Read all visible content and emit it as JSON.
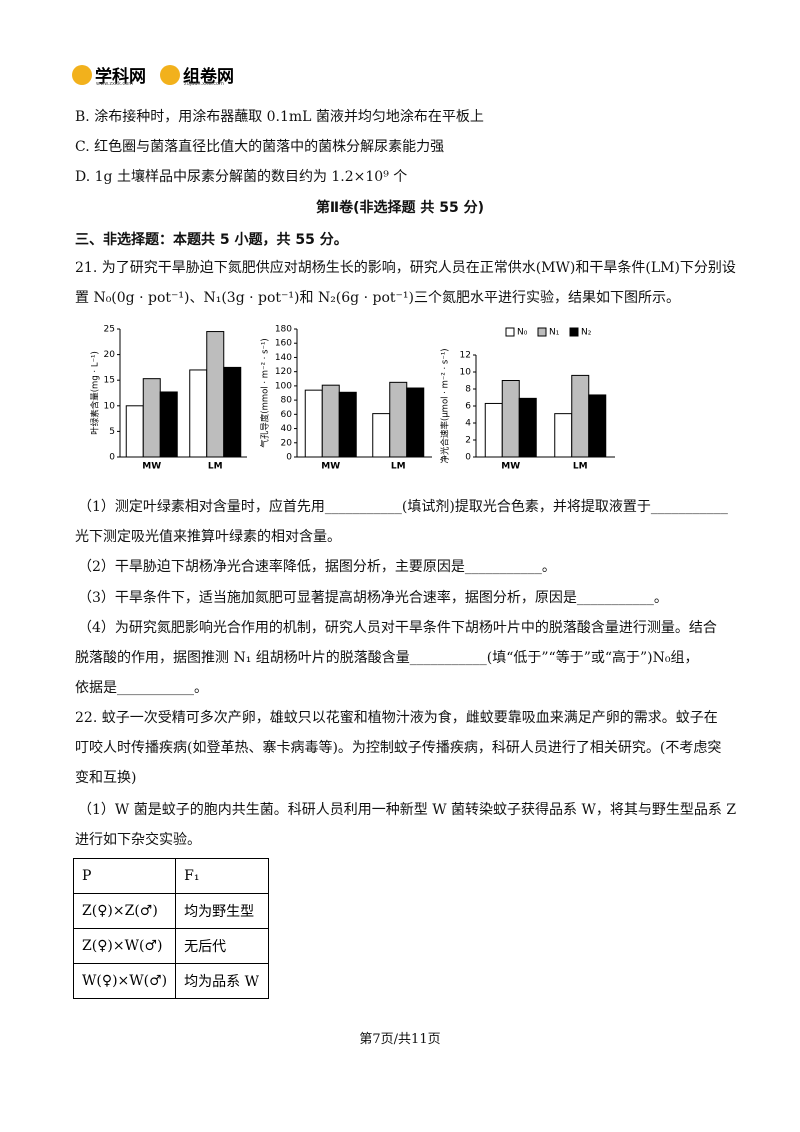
{
  "header": {
    "logo_1": "学科网",
    "logo_1_url": "www.zxxk.com",
    "logo_2": "组卷网",
    "logo_2_url": "zujuan.xkw.com"
  },
  "options": [
    "B. 涂布接种时，用涂布器蘸取 0.1mL 菌液并均匀地涂布在平板上",
    "C. 红色圈与菌落直径比值大的菌落中的菌株分解尿素能力强",
    "D. 1g 土壤样品中尿素分解菌的数目约为 1.2×10⁹ 个"
  ],
  "section_title": "第Ⅱ卷(非选择题  共 55 分)",
  "part_heading": "三、非选择题：本题共 5 小题，共 55 分。",
  "q21": {
    "stem": [
      "21. 为了研究干旱胁迫下氮肥供应对胡杨生长的影响，研究人员在正常供水(MW)和干旱条件(LM)下分别设",
      "置 N₀(0g · pot⁻¹)、N₁(3g · pot⁻¹)和 N₂(6g · pot⁻¹)三个氮肥水平进行实验，结果如下图所示。"
    ],
    "questions": [
      "（1）测定叶绿素相对含量时，应首先用___________(填试剂)提取光合色素，并将提取液置于___________",
      "光下测定吸光值来推算叶绿素的相对含量。",
      "（2）干旱胁迫下胡杨净光合速率降低，据图分析，主要原因是___________。",
      "（3）干旱条件下，适当施加氮肥可显著提高胡杨净光合速率，据图分析，原因是___________。",
      "（4）为研究氮肥影响光合作用的机制，研究人员对干旱条件下胡杨叶片中的脱落酸含量进行测量。结合",
      "脱落酸的作用，据图推测 N₁ 组胡杨叶片的脱落酸含量___________(填“低于”“等于”或“高于”)N₀组，",
      "依据是___________。"
    ]
  },
  "chart_data": [
    {
      "type": "bar",
      "y_label": "叶绿素含量(mg · L⁻¹)",
      "categories": [
        "MW",
        "LM"
      ],
      "series": [
        {
          "color": "#ffffff",
          "values": [
            10,
            17
          ]
        },
        {
          "color": "#bdbdbd",
          "values": [
            15.3,
            24.5
          ]
        },
        {
          "color": "#000000",
          "values": [
            12.7,
            17.5
          ]
        }
      ],
      "ylim": [
        0,
        25
      ],
      "yticks": [
        0,
        5,
        10,
        15,
        20,
        25
      ]
    },
    {
      "type": "bar",
      "y_label": "气孔导度(mmol · m⁻² · s⁻¹)",
      "categories": [
        "MW",
        "LM"
      ],
      "series": [
        {
          "color": "#ffffff",
          "values": [
            94,
            61
          ]
        },
        {
          "color": "#bdbdbd",
          "values": [
            101,
            105
          ]
        },
        {
          "color": "#000000",
          "values": [
            91,
            97
          ]
        }
      ],
      "ylim": [
        0,
        180
      ],
      "yticks": [
        0,
        20,
        40,
        60,
        80,
        100,
        120,
        140,
        160,
        180
      ]
    },
    {
      "type": "bar",
      "y_label": "净光合速率(μmol · m⁻² · s⁻¹)",
      "categories": [
        "MW",
        "LM"
      ],
      "series": [
        {
          "name": "N₀",
          "color": "#ffffff",
          "values": [
            6.3,
            5.1
          ]
        },
        {
          "name": "N₁",
          "color": "#bdbdbd",
          "values": [
            9,
            9.6
          ]
        },
        {
          "name": "N₂",
          "color": "#000000",
          "values": [
            6.9,
            7.3
          ]
        }
      ],
      "ylim": [
        0,
        12
      ],
      "yticks": [
        0,
        2,
        4,
        6,
        8,
        10,
        12
      ]
    }
  ],
  "q22": {
    "stem": [
      "22. 蚊子一次受精可多次产卵，雄蚊只以花蜜和植物汁液为食，雌蚊要靠吸血来满足产卵的需求。蚊子在",
      "叮咬人时传播疾病(如登革热、寨卡病毒等)。为控制蚊子传播疾病，科研人员进行了相关研究。(不考虑突",
      "变和互换)"
    ],
    "sub1": [
      "（1）W 菌是蚊子的胞内共生菌。科研人员利用一种新型 W 菌转染蚊子获得品系 W，将其与野生型品系 Z",
      "进行如下杂交实验。"
    ]
  },
  "table": {
    "header": [
      "P",
      "F₁"
    ],
    "rows": [
      [
        "Z(♀)×Z(♂)",
        "均为野生型"
      ],
      [
        "Z(♀)×W(♂)",
        "无后代"
      ],
      [
        "W(♀)×W(♂)",
        "均为品系 W"
      ]
    ]
  },
  "footer": "第7页/共11页"
}
